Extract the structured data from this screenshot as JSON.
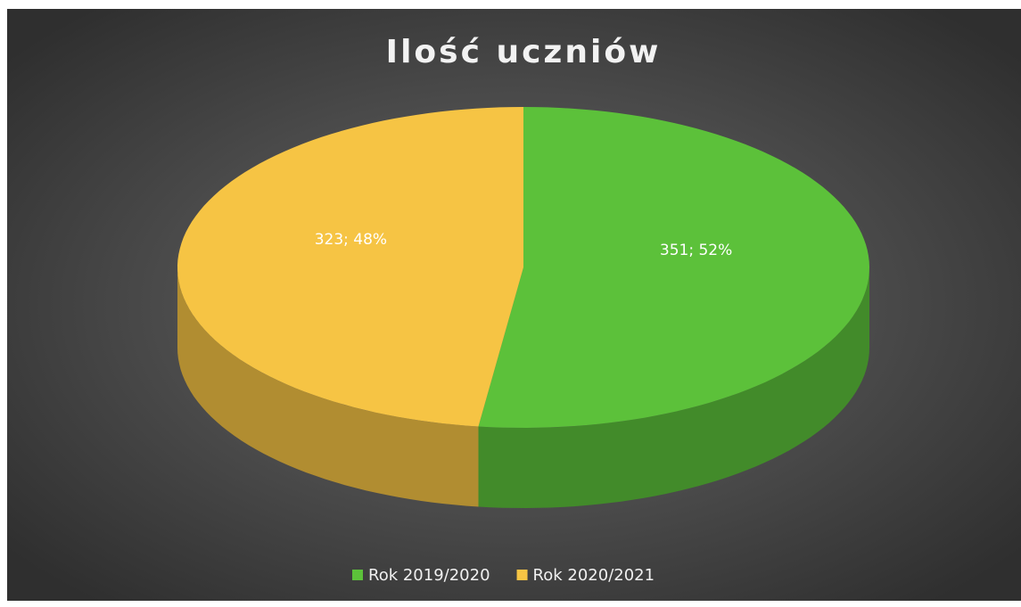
{
  "chart_data": {
    "type": "pie3d",
    "title": "Ilość uczniów",
    "categories": [
      "Rok 2019/2020",
      "Rok 2020/2021"
    ],
    "values": [
      351,
      323
    ],
    "value_labels": [
      "351; 52%",
      "323; 48%"
    ],
    "colors": [
      "#5cc13a",
      "#f6c444"
    ],
    "legend": "bottom"
  }
}
